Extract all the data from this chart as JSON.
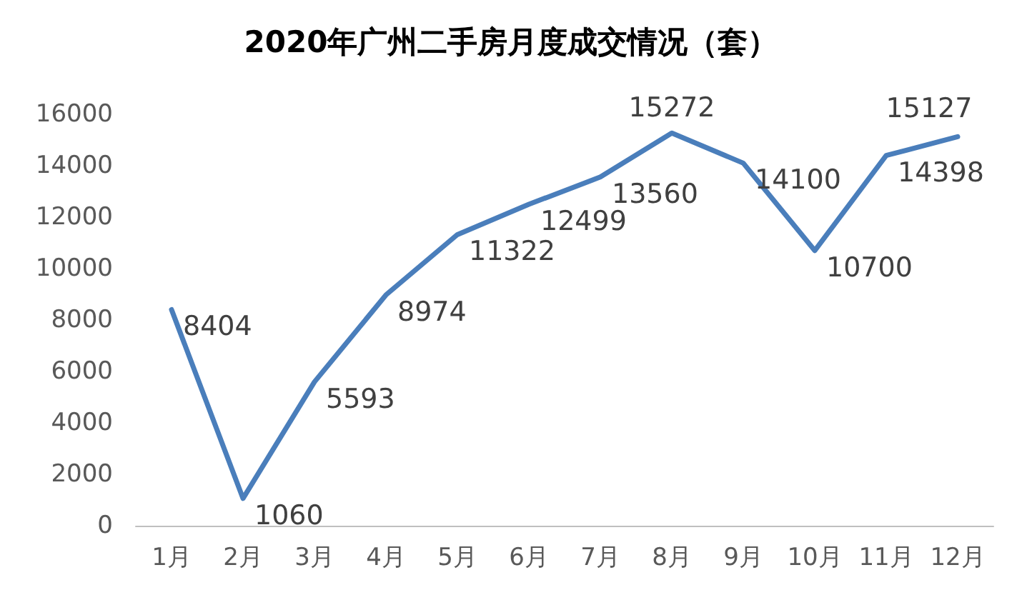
{
  "chart_data": {
    "type": "line",
    "title": "2020年广州二手房月度成交情况（套）",
    "categories": [
      "1月",
      "2月",
      "3月",
      "4月",
      "5月",
      "6月",
      "7月",
      "8月",
      "9月",
      "10月",
      "11月",
      "12月"
    ],
    "series": [
      {
        "color": "#4a7ebb",
        "values": [
          8404,
          1060,
          5593,
          8974,
          11322,
          12499,
          13560,
          15272,
          14100,
          10700,
          14398,
          15127
        ]
      }
    ],
    "ylim": [
      0,
      16000
    ],
    "yticks": [
      0,
      2000,
      4000,
      6000,
      8000,
      10000,
      12000,
      14000,
      16000
    ],
    "grid": false,
    "marker": "none",
    "line_style": "solid",
    "data_labels": true
  }
}
